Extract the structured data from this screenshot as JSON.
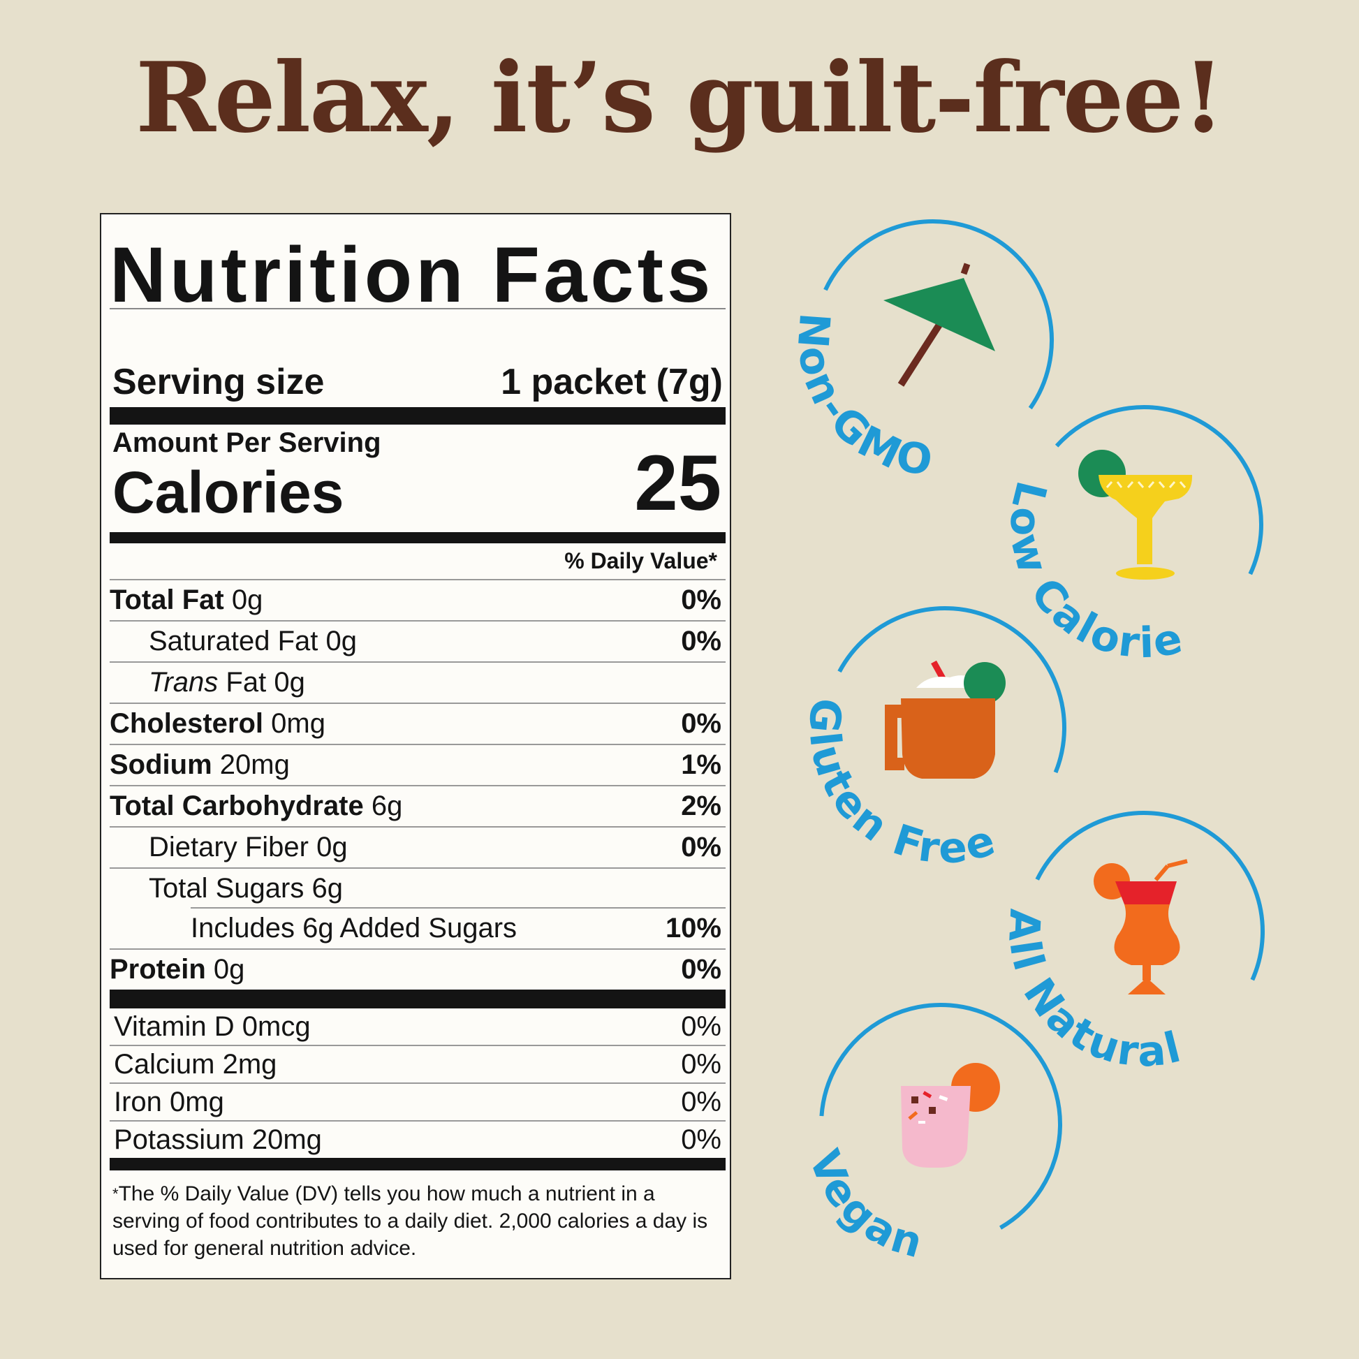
{
  "headline": "Relax, it’s guilt-free!",
  "label": {
    "title": "Nutrition Facts",
    "serving_size_label": "Serving size",
    "serving_size_value": "1 packet (7g)",
    "amount_per_serving": "Amount Per Serving",
    "calories_label": "Calories",
    "calories_value": "25",
    "daily_value_header": "% Daily Value*",
    "nutrients": [
      {
        "name": "Total Fat",
        "amount": "0g",
        "dv": "0%"
      },
      {
        "name": "Saturated Fat",
        "amount": "0g",
        "dv": "0%"
      },
      {
        "name": "Trans",
        "name_rest": "Fat",
        "amount": "0g",
        "dv": ""
      },
      {
        "name": "Cholesterol",
        "amount": "0mg",
        "dv": "0%"
      },
      {
        "name": "Sodium",
        "amount": "20mg",
        "dv": "1%"
      },
      {
        "name": "Total Carbohydrate",
        "amount": "6g",
        "dv": "2%"
      },
      {
        "name": "Dietary Fiber",
        "amount": "0g",
        "dv": "0%"
      },
      {
        "name": "Total Sugars",
        "amount": "6g",
        "dv": ""
      },
      {
        "name": "Includes 6g Added Sugars",
        "amount": "",
        "dv": "10%"
      },
      {
        "name": "Protein",
        "amount": "0g",
        "dv": "0%"
      }
    ],
    "vitamins": [
      {
        "name": "Vitamin D 0mcg",
        "dv": "0%"
      },
      {
        "name": "Calcium 2mg",
        "dv": "0%"
      },
      {
        "name": "Iron 0mg",
        "dv": "0%"
      },
      {
        "name": "Potassium 20mg",
        "dv": "0%"
      }
    ],
    "footnote_star": "*",
    "footnote": "The % Daily Value (DV) tells you how much a nutrient in a serving of food contributes to a daily diet. 2,000 calories a day is used for general nutrition advice."
  },
  "badges": [
    {
      "label": "Non-GMO",
      "icon": "cocktail-umbrella-icon"
    },
    {
      "label": "Low Calorie",
      "icon": "margarita-icon"
    },
    {
      "label": "Gluten Free",
      "icon": "mule-mug-icon"
    },
    {
      "label": "All Natural",
      "icon": "hurricane-glass-icon"
    },
    {
      "label": "Vegan",
      "icon": "pink-cocktail-icon"
    }
  ],
  "colors": {
    "background": "#e6e0cc",
    "headline": "#5b2e1d",
    "badge_blue": "#1f9ad6",
    "label_ink": "#141414"
  }
}
